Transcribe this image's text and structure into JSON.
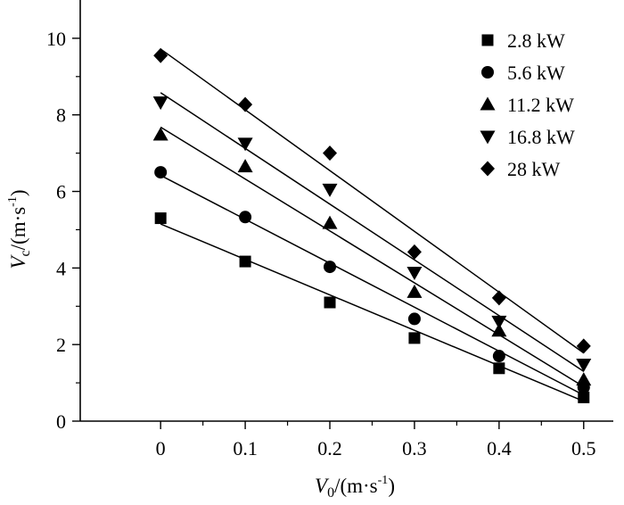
{
  "chart_data": {
    "type": "scatter",
    "title": "",
    "xlabel": {
      "var": "V",
      "sub": "0",
      "unit_prefix": "/(m·s",
      "sup": "-1",
      "unit_suffix": ")"
    },
    "ylabel": {
      "var": "V",
      "sub": "c",
      "unit_prefix": "/(m·s",
      "sup": "-1",
      "unit_suffix": ")"
    },
    "xlim": [
      -0.095,
      0.535
    ],
    "ylim": [
      0,
      11
    ],
    "x_ticks": [
      "0",
      "0.1",
      "0.2",
      "0.3",
      "0.4",
      "0.5"
    ],
    "y_ticks": [
      "0",
      "2",
      "4",
      "6",
      "8",
      "10"
    ],
    "grid": false,
    "legend_position": "top-right",
    "x": [
      0,
      0.1,
      0.2,
      0.3,
      0.4,
      0.5
    ],
    "series": [
      {
        "name": "2.8 kW",
        "marker": "square",
        "values": [
          5.3,
          4.17,
          3.1,
          2.17,
          1.38,
          0.62
        ],
        "fit": [
          5.15,
          0.52
        ]
      },
      {
        "name": "5.6 kW",
        "marker": "circle",
        "values": [
          6.5,
          5.33,
          4.03,
          2.67,
          1.7,
          0.88
        ],
        "fit": [
          6.42,
          0.68
        ]
      },
      {
        "name": "11.2 kW",
        "marker": "triangle-up",
        "values": [
          7.48,
          6.65,
          5.17,
          3.37,
          2.36,
          1.08
        ],
        "fit": [
          7.68,
          0.9
        ]
      },
      {
        "name": "16.8 kW",
        "marker": "triangle-down",
        "values": [
          8.33,
          7.25,
          6.05,
          3.88,
          2.6,
          1.48
        ],
        "fit": [
          8.58,
          1.3
        ]
      },
      {
        "name": "28 kW",
        "marker": "diamond",
        "values": [
          9.55,
          8.27,
          7.0,
          4.42,
          3.22,
          1.96
        ],
        "fit": [
          9.72,
          1.78
        ]
      }
    ]
  }
}
